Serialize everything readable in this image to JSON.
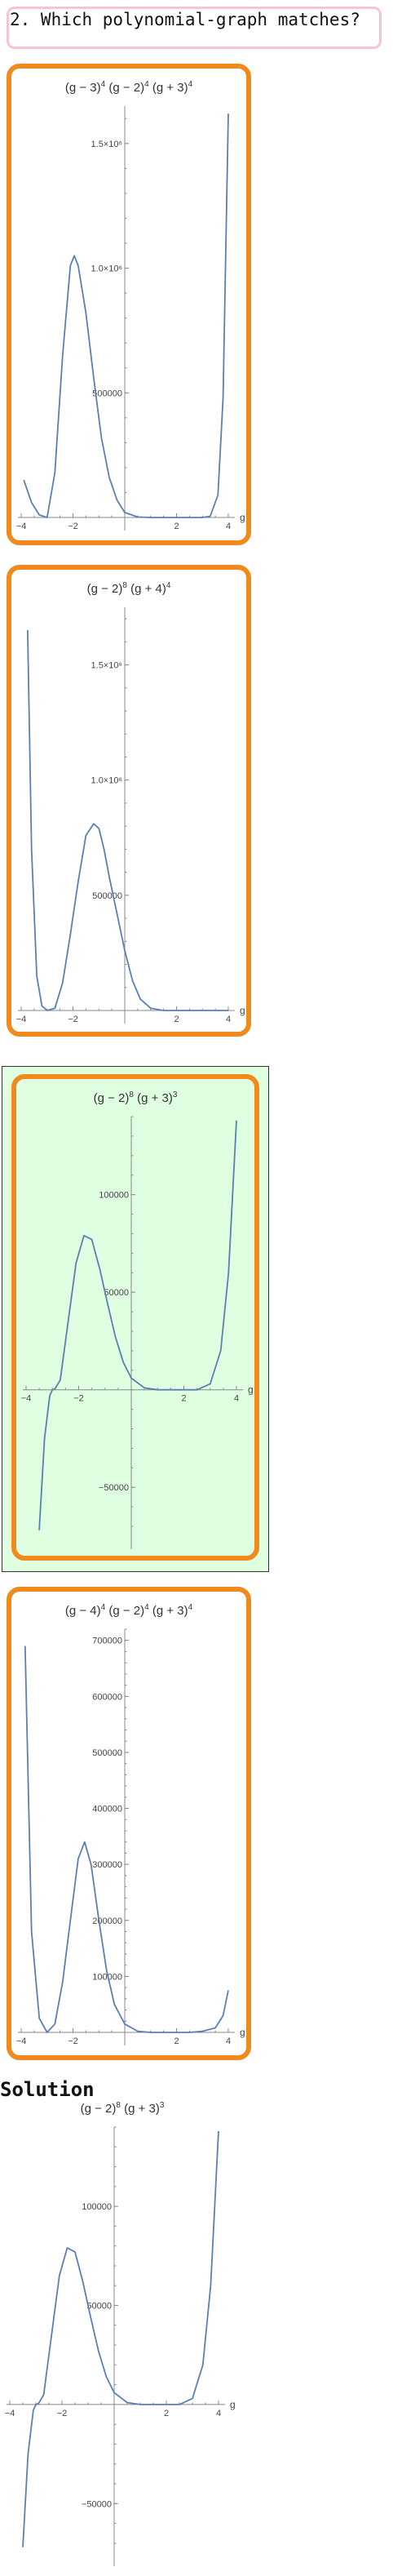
{
  "question": {
    "label": "2. Which polynomial-graph matches?"
  },
  "answer_options": [
    {
      "title_html": "(g − 3)<sup>4</sup> (g − 2)<sup>4</sup> (g + 3)<sup>4</sup>",
      "correct": false
    },
    {
      "title_html": "(g − 2)<sup>8</sup> (g + 4)<sup>4</sup>",
      "correct": false
    },
    {
      "title_html": "(g − 2)<sup>8</sup> (g + 3)<sup>3</sup>",
      "correct": true
    },
    {
      "title_html": "(g − 4)<sup>4</sup> (g − 2)<sup>4</sup> (g + 3)<sup>4</sup>",
      "correct": false
    }
  ],
  "solution": {
    "heading": "Solution",
    "title_html": "(g − 2)<sup>8</sup> (g + 3)<sup>3</sup>"
  },
  "chart_data": [
    {
      "type": "line",
      "title": "(g−3)^4 (g−2)^4 (g+3)^4",
      "xlabel": "g",
      "xlim": [
        -4,
        4
      ],
      "x_ticks": [
        -4,
        -2,
        2,
        4
      ],
      "ylim": [
        0,
        1650000
      ],
      "y_ticks": [
        500000,
        1000000,
        1500000
      ],
      "y_tick_labels": [
        "500000",
        "1.0×10⁶",
        "1.5×10⁶"
      ],
      "series": [
        {
          "x": [
            -3.9,
            -3.6,
            -3.3,
            -3.0,
            -2.7,
            -2.4,
            -2.1,
            -1.95,
            -1.8,
            -1.5,
            -1.2,
            -0.9,
            -0.6,
            -0.3,
            0.0,
            0.5,
            1.0,
            1.5,
            2.0,
            2.5,
            3.0,
            3.3,
            3.6,
            3.8,
            4.0
          ],
          "y": [
            150000,
            60000,
            10000,
            0,
            180000,
            650000,
            1010000,
            1050000,
            1010000,
            820000,
            560000,
            320000,
            160000,
            70000,
            20000,
            2000,
            0,
            0,
            0,
            0,
            0,
            5000,
            90000,
            480000,
            1620000
          ]
        }
      ]
    },
    {
      "type": "line",
      "title": "(g−2)^8 (g+4)^4",
      "xlabel": "g",
      "xlim": [
        -4,
        4
      ],
      "x_ticks": [
        -4,
        -2,
        2,
        4
      ],
      "ylim": [
        0,
        1750000
      ],
      "y_ticks": [
        500000,
        1000000,
        1500000
      ],
      "y_tick_labels": [
        "500000",
        "1.0×10⁶",
        "1.5×10⁶"
      ],
      "series": [
        {
          "x": [
            -3.75,
            -3.6,
            -3.4,
            -3.2,
            -3.0,
            -2.7,
            -2.4,
            -2.1,
            -1.8,
            -1.5,
            -1.2,
            -1.0,
            -0.8,
            -0.6,
            -0.3,
            0.0,
            0.3,
            0.6,
            1.0,
            1.5,
            2.0,
            3.0,
            4.0
          ],
          "y": [
            1650000,
            700000,
            150000,
            20000,
            0,
            10000,
            120000,
            330000,
            560000,
            760000,
            810000,
            790000,
            700000,
            580000,
            420000,
            260000,
            130000,
            50000,
            10000,
            0,
            0,
            0,
            0
          ]
        }
      ]
    },
    {
      "type": "line",
      "title": "(g−2)^8 (g+3)^3",
      "xlabel": "g",
      "xlim": [
        -4,
        4
      ],
      "x_ticks": [
        -4,
        -2,
        2,
        4
      ],
      "ylim": [
        -75000,
        140000
      ],
      "y_ticks": [
        -50000,
        50000,
        100000
      ],
      "y_tick_labels": [
        "−50000",
        "50000",
        "100000"
      ],
      "series": [
        {
          "x": [
            -3.5,
            -3.3,
            -3.1,
            -3.0,
            -2.9,
            -2.7,
            -2.4,
            -2.1,
            -1.8,
            -1.5,
            -1.2,
            -0.9,
            -0.6,
            -0.3,
            0.0,
            0.5,
            1.0,
            1.5,
            2.0,
            2.5,
            3.0,
            3.4,
            3.7,
            4.0
          ],
          "y": [
            -72000,
            -25000,
            -3000,
            0,
            500,
            5000,
            35000,
            65000,
            79000,
            77000,
            62000,
            44000,
            27000,
            14000,
            6000,
            1000,
            0,
            0,
            0,
            0,
            3000,
            20000,
            60000,
            138000
          ]
        }
      ]
    },
    {
      "type": "line",
      "title": "(g−4)^4 (g−2)^4 (g+3)^4",
      "xlabel": "g",
      "xlim": [
        -4,
        4
      ],
      "x_ticks": [
        -4,
        -2,
        2,
        4
      ],
      "ylim": [
        0,
        720000
      ],
      "y_ticks": [
        100000,
        200000,
        300000,
        400000,
        500000,
        600000,
        700000
      ],
      "y_tick_labels": [
        "100000",
        "200000",
        "300000",
        "400000",
        "500000",
        "600000",
        "700000"
      ],
      "series": [
        {
          "x": [
            -3.85,
            -3.6,
            -3.3,
            -3.0,
            -2.7,
            -2.4,
            -2.1,
            -1.8,
            -1.55,
            -1.3,
            -1.0,
            -0.7,
            -0.4,
            0.0,
            0.5,
            1.0,
            1.5,
            2.0,
            2.5,
            3.0,
            3.5,
            3.8,
            4.0
          ],
          "y": [
            690000,
            180000,
            25000,
            0,
            15000,
            90000,
            200000,
            310000,
            340000,
            300000,
            200000,
            110000,
            50000,
            15000,
            2000,
            0,
            0,
            0,
            0,
            2000,
            8000,
            30000,
            75000
          ]
        }
      ]
    },
    {
      "type": "line",
      "title": "(g−2)^8 (g+3)^3",
      "xlabel": "g",
      "xlim": [
        -4,
        4
      ],
      "x_ticks": [
        -4,
        -2,
        2,
        4
      ],
      "ylim": [
        -75000,
        140000
      ],
      "y_ticks": [
        -50000,
        50000,
        100000
      ],
      "y_tick_labels": [
        "−50000",
        "50000",
        "100000"
      ],
      "series": [
        {
          "x": [
            -3.5,
            -3.3,
            -3.1,
            -3.0,
            -2.9,
            -2.7,
            -2.4,
            -2.1,
            -1.8,
            -1.5,
            -1.2,
            -0.9,
            -0.6,
            -0.3,
            0.0,
            0.5,
            1.0,
            1.5,
            2.0,
            2.5,
            3.0,
            3.4,
            3.7,
            4.0
          ],
          "y": [
            -72000,
            -25000,
            -3000,
            0,
            500,
            5000,
            35000,
            65000,
            79000,
            77000,
            62000,
            44000,
            27000,
            14000,
            6000,
            1000,
            0,
            0,
            0,
            0,
            3000,
            20000,
            60000,
            138000
          ]
        }
      ]
    }
  ]
}
